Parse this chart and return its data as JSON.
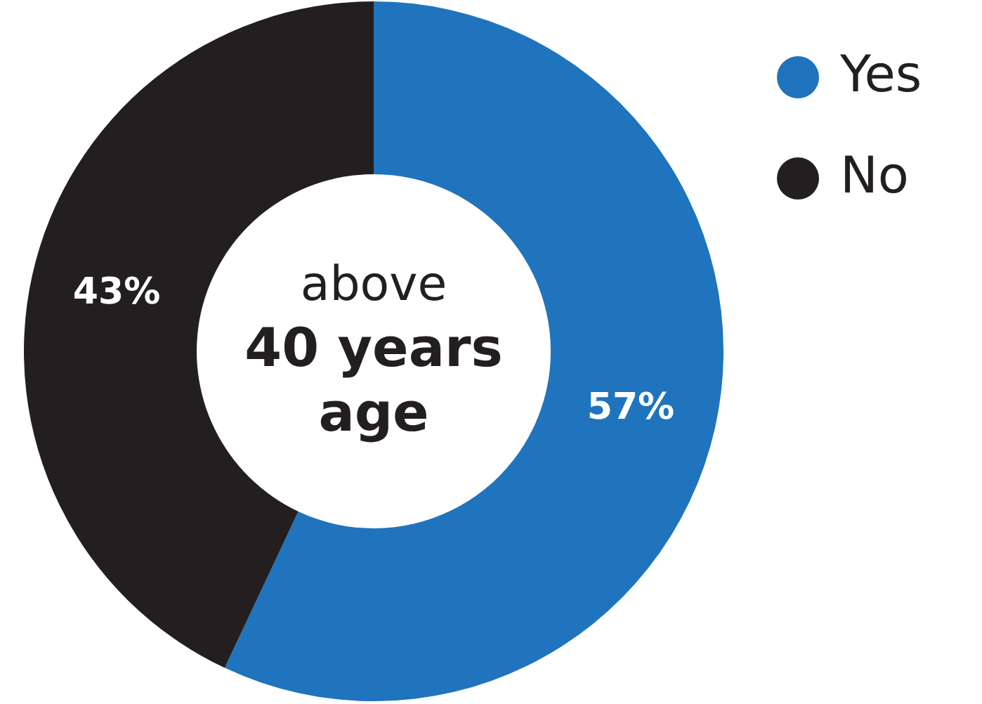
{
  "chart_data": {
    "type": "donut",
    "categories": [
      "Yes",
      "No"
    ],
    "values": [
      57,
      43
    ],
    "colors": [
      "#1f74bd",
      "#231f20"
    ],
    "value_labels": [
      "57%",
      "43%"
    ],
    "legend": "top right",
    "annotations": [
      "above",
      "40 years",
      "age"
    ]
  }
}
